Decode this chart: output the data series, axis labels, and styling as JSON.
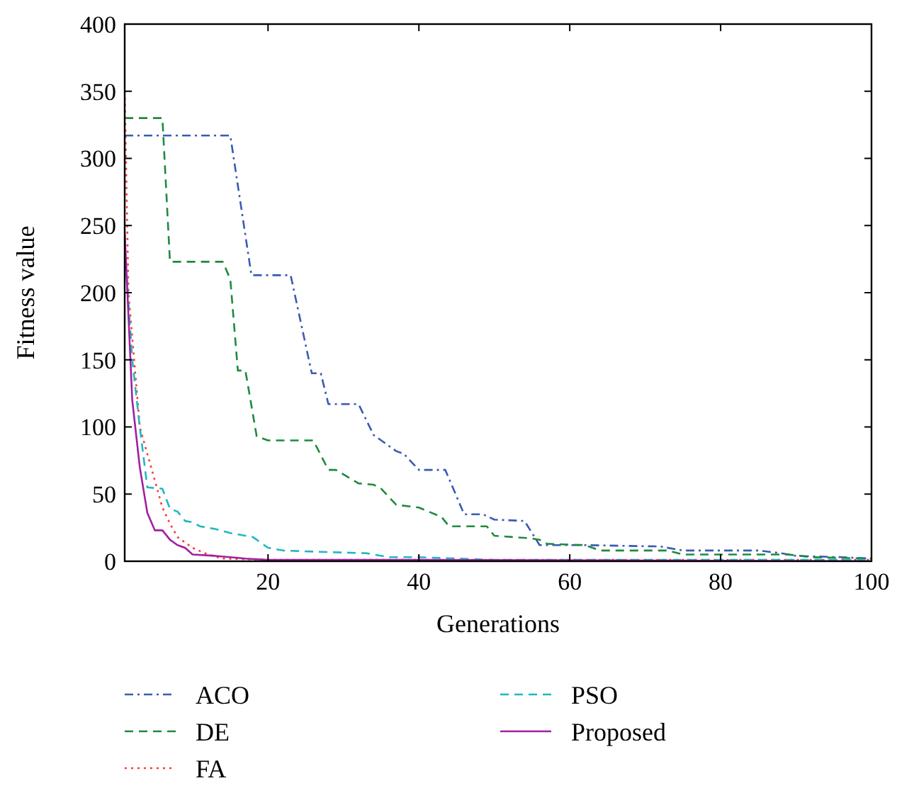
{
  "chart_data": {
    "type": "line",
    "xlabel": "Generations",
    "ylabel": "Fitness value",
    "xlim": [
      1,
      100
    ],
    "ylim": [
      0,
      400
    ],
    "xticks": [
      20,
      40,
      60,
      80,
      100
    ],
    "yticks": [
      0,
      50,
      100,
      150,
      200,
      250,
      300,
      350,
      400
    ],
    "legend": "bottom",
    "grid": false,
    "series": [
      {
        "name": "ACO",
        "color": "#3a5bb5",
        "line_style": "dashdot",
        "x": [
          1,
          15,
          17.8,
          23,
          25.8,
          27,
          28,
          32,
          34,
          37,
          38,
          40,
          43.5,
          46,
          48.5,
          50,
          54,
          56,
          62,
          72,
          75,
          85,
          88,
          90,
          96,
          100
        ],
        "values": [
          317,
          317,
          213,
          213,
          140,
          140,
          117,
          117,
          94,
          82,
          80,
          68,
          68,
          35,
          35,
          31,
          30,
          12,
          12,
          11,
          8,
          8,
          6,
          4,
          3,
          2
        ]
      },
      {
        "name": "DE",
        "color": "#1e8a3e",
        "line_style": "dashed",
        "x": [
          1,
          6,
          7,
          14,
          15,
          16,
          17,
          18.5,
          20,
          26,
          28,
          29,
          32,
          34,
          35,
          37,
          40,
          43,
          44,
          49,
          50,
          55,
          56,
          57,
          62,
          64,
          73,
          75,
          89,
          92,
          100
        ],
        "values": [
          330,
          330,
          223,
          223,
          210,
          142,
          142,
          93,
          90,
          90,
          68,
          68,
          58,
          57,
          54,
          42,
          40,
          33,
          26,
          26,
          19,
          17,
          16,
          13,
          12,
          8,
          8,
          5,
          5,
          3,
          2
        ]
      },
      {
        "name": "FA",
        "color": "#ff3b3b",
        "line_style": "dotted",
        "x": [
          1,
          1.5,
          3,
          5,
          6,
          7,
          8,
          10,
          12,
          14,
          20,
          100
        ],
        "values": [
          350,
          200,
          100,
          60,
          40,
          28,
          18,
          10,
          5,
          2,
          1,
          1
        ]
      },
      {
        "name": "PSO",
        "color": "#20b8c0",
        "line_style": "dashed",
        "x": [
          1,
          2,
          3,
          4,
          6,
          7,
          8,
          9,
          10,
          11,
          13,
          15,
          18,
          20,
          22,
          27,
          33,
          36,
          40,
          45,
          50,
          60,
          100
        ],
        "values": [
          235,
          150,
          100,
          55,
          54,
          39,
          37,
          30,
          29,
          26,
          24,
          21,
          18,
          10,
          8,
          7,
          6,
          3,
          3,
          2,
          1,
          1,
          1
        ]
      },
      {
        "name": "Proposed",
        "color": "#a020a0",
        "line_style": "solid",
        "x": [
          1,
          2,
          3,
          4,
          5,
          6,
          7,
          8,
          9,
          10,
          13,
          15,
          17,
          20,
          40,
          100
        ],
        "values": [
          245,
          120,
          70,
          36,
          23,
          23,
          16,
          12,
          10,
          5,
          4,
          3,
          2,
          1,
          1,
          0
        ]
      }
    ]
  }
}
